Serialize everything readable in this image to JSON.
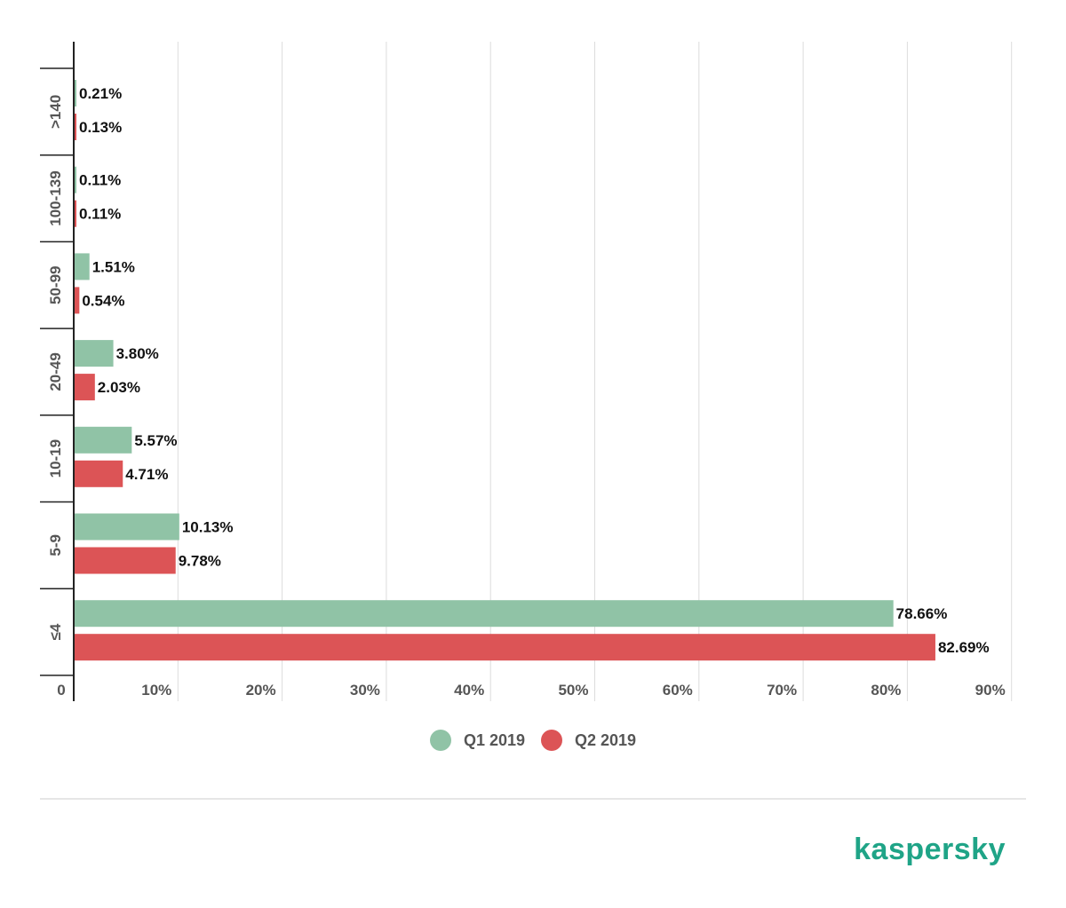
{
  "chart_data": {
    "type": "bar",
    "orientation": "horizontal",
    "categories": [
      ">140",
      "100-139",
      "50-99",
      "20-49",
      "10-19",
      "5-9",
      "≤4"
    ],
    "series": [
      {
        "name": "Q1 2019",
        "color": "#90c3a6",
        "values": [
          0.21,
          0.11,
          1.51,
          3.8,
          5.57,
          10.13,
          78.66
        ],
        "labels": [
          "0.21%",
          "0.11%",
          "1.51%",
          "3.80%",
          "5.57%",
          "10.13%",
          "78.66%"
        ]
      },
      {
        "name": "Q2 2019",
        "color": "#dc5456",
        "values": [
          0.13,
          0.11,
          0.54,
          2.03,
          4.71,
          9.78,
          82.69
        ],
        "labels": [
          "0.13%",
          "0.11%",
          "0.54%",
          "2.03%",
          "4.71%",
          "9.78%",
          "82.69%"
        ]
      }
    ],
    "xlim": [
      0,
      90
    ],
    "xticks": [
      0,
      10,
      20,
      30,
      40,
      50,
      60,
      70,
      80,
      90
    ],
    "xtick_labels": [
      "0",
      "10%",
      "20%",
      "30%",
      "40%",
      "50%",
      "60%",
      "70%",
      "80%",
      "90%"
    ],
    "grid": true,
    "legend": "bottom-center"
  },
  "logo": {
    "text": "kaspersky",
    "color": "#1fa487"
  }
}
